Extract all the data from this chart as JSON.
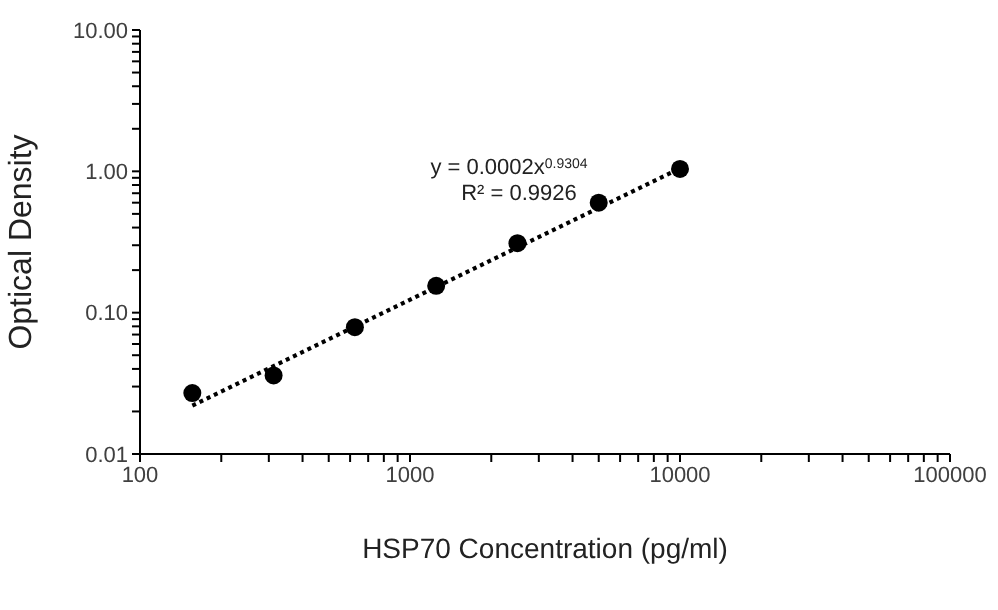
{
  "chart_data": {
    "type": "scatter",
    "xlabel": "HSP70 Concentration (pg/ml)",
    "ylabel": "Optical Density",
    "log": "xy",
    "xlim": [
      100,
      100000
    ],
    "xticks": [
      100,
      {
        "value": 200,
        "label": null
      },
      {
        "value": 300,
        "label": null
      },
      {
        "value": 400,
        "label": null
      },
      {
        "value": 500,
        "label": null
      },
      {
        "value": 600,
        "label": null
      },
      {
        "value": 700,
        "label": null
      },
      {
        "value": 800,
        "label": null
      },
      {
        "value": 900,
        "label": null
      },
      1000,
      {
        "value": 2000,
        "label": null
      },
      {
        "value": 3000,
        "label": null
      },
      {
        "value": 4000,
        "label": null
      },
      {
        "value": 5000,
        "label": null
      },
      {
        "value": 6000,
        "label": null
      },
      {
        "value": 7000,
        "label": null
      },
      {
        "value": 8000,
        "label": null
      },
      {
        "value": 9000,
        "label": null
      },
      10000,
      {
        "value": 20000,
        "label": null
      },
      {
        "value": 30000,
        "label": null
      },
      {
        "value": 40000,
        "label": null
      },
      {
        "value": 50000,
        "label": null
      },
      {
        "value": 60000,
        "label": null
      },
      {
        "value": 70000,
        "label": null
      },
      {
        "value": 80000,
        "label": null
      },
      {
        "value": 90000,
        "label": null
      },
      100000
    ],
    "ylim": [
      0.01,
      10
    ],
    "yticks": [
      {
        "value": 0.01,
        "label": "0.01"
      },
      {
        "value": 0.02,
        "label": null
      },
      {
        "value": 0.03,
        "label": null
      },
      {
        "value": 0.04,
        "label": null
      },
      {
        "value": 0.05,
        "label": null
      },
      {
        "value": 0.06,
        "label": null
      },
      {
        "value": 0.07,
        "label": null
      },
      {
        "value": 0.08,
        "label": null
      },
      {
        "value": 0.09,
        "label": null
      },
      {
        "value": 0.1,
        "label": "0.10"
      },
      {
        "value": 0.2,
        "label": null
      },
      {
        "value": 0.3,
        "label": null
      },
      {
        "value": 0.4,
        "label": null
      },
      {
        "value": 0.5,
        "label": null
      },
      {
        "value": 0.6,
        "label": null
      },
      {
        "value": 0.7,
        "label": null
      },
      {
        "value": 0.8,
        "label": null
      },
      {
        "value": 0.9,
        "label": null
      },
      {
        "value": 1,
        "label": "1.00"
      },
      {
        "value": 2,
        "label": null
      },
      {
        "value": 3,
        "label": null
      },
      {
        "value": 4,
        "label": null
      },
      {
        "value": 5,
        "label": null
      },
      {
        "value": 6,
        "label": null
      },
      {
        "value": 7,
        "label": null
      },
      {
        "value": 8,
        "label": null
      },
      {
        "value": 9,
        "label": null
      },
      {
        "value": 10,
        "label": "10.00"
      }
    ],
    "series": [
      {
        "color": "#000000",
        "marker": "circle",
        "x": [
          156.25,
          312.5,
          625,
          1250,
          2500,
          5000,
          10000
        ],
        "values": [
          0.027,
          0.036,
          0.079,
          0.155,
          0.31,
          0.6,
          1.04
        ]
      },
      {
        "type": "line",
        "color": "#000000",
        "marker": "none",
        "line_style": "dotted",
        "x": [
          156.25,
          10000
        ],
        "values": [
          0.022,
          1.05
        ]
      }
    ],
    "annotations": [
      "y = 0.0002x$^{0.9304}$",
      "R² = 0.9926"
    ]
  }
}
